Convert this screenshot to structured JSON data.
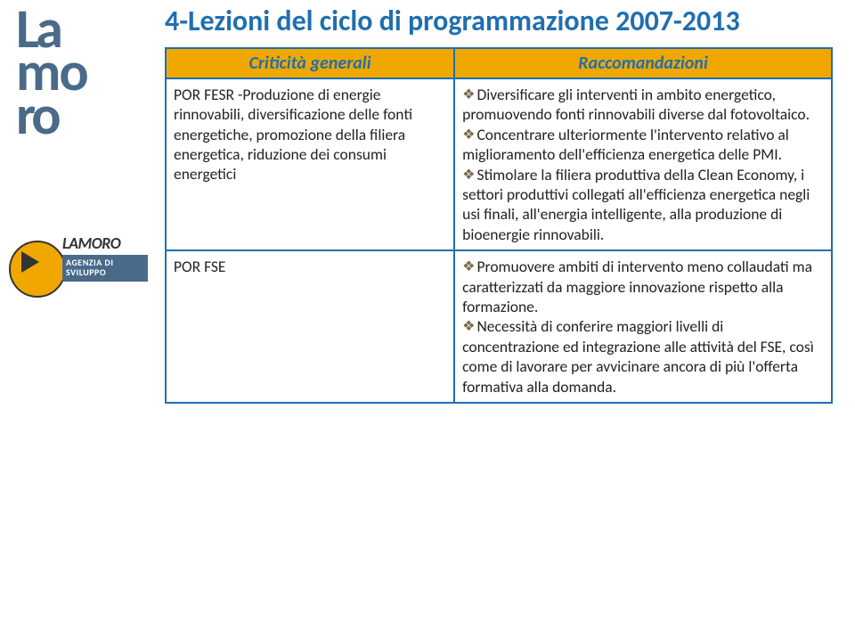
{
  "sidebar": {
    "logo_line1": "La",
    "logo_line2": "mo",
    "logo_line3": "ro",
    "agency_name": "LAMORO",
    "agency_subtitle1": "AGENZIA DI",
    "agency_subtitle2": "SVILUPPO"
  },
  "title": "4-Lezioni del ciclo di programmazione 2007-2013",
  "table": {
    "header_left": "Criticità generali",
    "header_right": "Raccomandazioni",
    "rows": [
      {
        "left": "POR FESR -Produzione di energie rinnovabili, diversificazione delle fonti energetiche, promozione della filiera energetica, riduzione dei consumi energetici",
        "right_items": [
          "Diversificare gli interventi in ambito energetico, promuovendo fonti rinnovabili diverse dal fotovoltaico.",
          "Concentrare ulteriormente l'intervento relativo al miglioramento dell'efficienza energetica delle PMI.",
          "Stimolare la filiera produttiva della Clean Economy, i settori produttivi collegati all'efficienza energetica negli usi finali, all'energia intelligente, alla produzione di bioenergie rinnovabili."
        ]
      },
      {
        "left": "POR FSE",
        "right_items": [
          "Promuovere ambiti di intervento meno collaudati ma caratterizzati da maggiore innovazione rispetto alla formazione.",
          "Necessità di conferire maggiori livelli di concentrazione ed integrazione alle attività del FSE, così come di lavorare per avvicinare ancora di più l'offerta formativa alla domanda."
        ]
      }
    ]
  },
  "colors": {
    "accent_blue": "#1f6fb0",
    "accent_orange": "#f0a800",
    "logo_blue": "#4a6a8a",
    "bullet_color": "#7a6a4a"
  }
}
